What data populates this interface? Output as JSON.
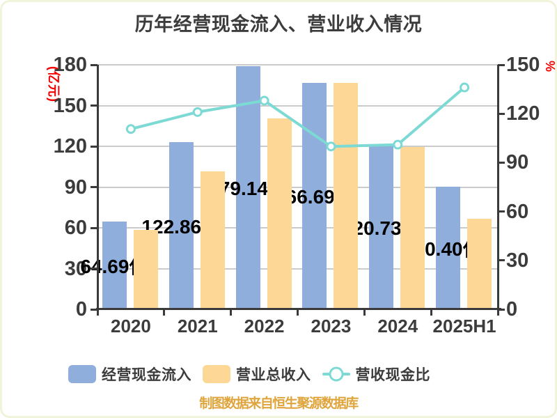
{
  "title": "历年经营现金流入、营业收入情况",
  "footer": "制图数据来自恒生聚源数据库",
  "colors": {
    "bar_cash_inflow": "#8FAEDC",
    "bar_revenue": "#FDD795",
    "line_ratio": "#7CD9D4",
    "grid": "#CBCBCB",
    "axis": "#3A3A3A",
    "tick_text": "#3C3C3C",
    "value_label": "#000000",
    "axis_unit_red": "#F40000",
    "footer_text": "#DFA53C"
  },
  "left_axis_unit": "(亿元)",
  "right_axis_unit": "%",
  "legend": {
    "items": [
      {
        "label": "经营现金流入",
        "type": "bar"
      },
      {
        "label": "营业总收入",
        "type": "bar"
      },
      {
        "label": "营收现金比",
        "type": "line"
      }
    ]
  },
  "chart_data": {
    "type": "bar+line",
    "categories": [
      "2020",
      "2021",
      "2022",
      "2023",
      "2024",
      "2025H1"
    ],
    "series": [
      {
        "name": "经营现金流入",
        "type": "bar",
        "axis": "left",
        "values": [
          64.69,
          122.86,
          179.14,
          166.69,
          120.73,
          90.4
        ],
        "data_labels": [
          "64.69亿",
          "122.86亿",
          "179.14亿",
          "166.69亿",
          "120.73亿",
          "90.40亿"
        ]
      },
      {
        "name": "营业总收入",
        "type": "bar",
        "axis": "left",
        "values": [
          58.5,
          101.5,
          140.5,
          166.9,
          119.5,
          66.5
        ]
      },
      {
        "name": "营收现金比",
        "type": "line",
        "axis": "right",
        "values": [
          110.6,
          121.0,
          128.0,
          99.9,
          101.0,
          136.1
        ]
      }
    ],
    "left_axis": {
      "label": "(亿元)",
      "min": 0,
      "max": 180,
      "step": 30,
      "ticks": [
        0,
        30,
        60,
        90,
        120,
        150,
        180
      ]
    },
    "right_axis": {
      "label": "%",
      "min": 0,
      "max": 150,
      "step": 30,
      "ticks": [
        0,
        30,
        60,
        90,
        120,
        150
      ]
    },
    "grid": true,
    "legend_position": "bottom",
    "title": "历年经营现金流入、营业收入情况"
  }
}
